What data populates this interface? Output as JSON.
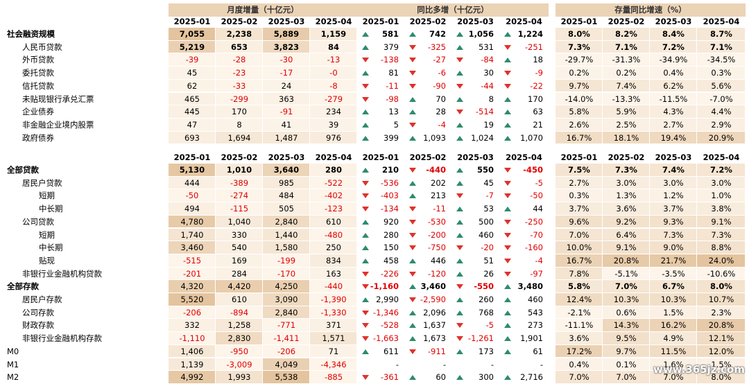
{
  "sections": {
    "monthly": "月度增量（十亿元）",
    "yoy": "同比多增（十亿元）",
    "growth": "存量同比增速（%）"
  },
  "months": [
    "2025-01",
    "2025-02",
    "2025-03",
    "2025-04"
  ],
  "table1": [
    {
      "label": "社会融资规模",
      "indent": 0,
      "bold": true,
      "monthly": [
        "7,055",
        "2,238",
        "5,889",
        "1,159"
      ],
      "yoy": [
        [
          "up",
          "581"
        ],
        [
          "up",
          "742"
        ],
        [
          "up",
          "1,056"
        ],
        [
          "up",
          "1,224"
        ]
      ],
      "growth": [
        "8.0%",
        "8.2%",
        "8.4%",
        "8.7%"
      ]
    },
    {
      "label": "人民币贷款",
      "indent": 1,
      "bold": false,
      "bold_values": true,
      "monthly": [
        "5,219",
        "653",
        "3,823",
        "84"
      ],
      "yoy": [
        [
          "up",
          "379"
        ],
        [
          "down",
          "-325"
        ],
        [
          "up",
          "531"
        ],
        [
          "down",
          "-251"
        ]
      ],
      "growth": [
        "7.3%",
        "7.1%",
        "7.2%",
        "7.1%"
      ]
    },
    {
      "label": "外币贷款",
      "indent": 1,
      "monthly": [
        "-39",
        "-28",
        "-30",
        "-13"
      ],
      "yoy": [
        [
          "down",
          "-138"
        ],
        [
          "down",
          "-27"
        ],
        [
          "down",
          "-84"
        ],
        [
          "up",
          "18"
        ]
      ],
      "growth": [
        "-29.7%",
        "-31.3%",
        "-34.9%",
        "-34.5%"
      ]
    },
    {
      "label": "委托贷款",
      "indent": 1,
      "monthly": [
        "45",
        "-23",
        "-17",
        "-0"
      ],
      "yoy": [
        [
          "up",
          "81"
        ],
        [
          "down",
          "-6"
        ],
        [
          "up",
          "30"
        ],
        [
          "down",
          "-9"
        ]
      ],
      "growth": [
        "0.2%",
        "0.2%",
        "0.4%",
        "0.3%"
      ]
    },
    {
      "label": "信托贷款",
      "indent": 1,
      "monthly": [
        "62",
        "-33",
        "24",
        "-8"
      ],
      "yoy": [
        [
          "down",
          "-11"
        ],
        [
          "down",
          "-90"
        ],
        [
          "down",
          "-44"
        ],
        [
          "down",
          "-22"
        ]
      ],
      "growth": [
        "9.7%",
        "7.4%",
        "6.2%",
        "5.6%"
      ]
    },
    {
      "label": "未贴现银行承兑汇票",
      "indent": 1,
      "monthly": [
        "465",
        "-299",
        "363",
        "-279"
      ],
      "yoy": [
        [
          "down",
          "-98"
        ],
        [
          "up",
          "70"
        ],
        [
          "up",
          "8"
        ],
        [
          "up",
          "170"
        ]
      ],
      "growth": [
        "-14.0%",
        "-13.3%",
        "-11.5%",
        "-7.0%"
      ]
    },
    {
      "label": "企业债券",
      "indent": 1,
      "monthly": [
        "445",
        "170",
        "-91",
        "234"
      ],
      "yoy": [
        [
          "up",
          "13"
        ],
        [
          "up",
          "28"
        ],
        [
          "down",
          "-514"
        ],
        [
          "up",
          "63"
        ]
      ],
      "growth": [
        "5.8%",
        "5.9%",
        "4.3%",
        "4.4%"
      ]
    },
    {
      "label": "非金融企业境内股票",
      "indent": 1,
      "monthly": [
        "47",
        "8",
        "41",
        "39"
      ],
      "yoy": [
        [
          "up",
          "5"
        ],
        [
          "down",
          "-4"
        ],
        [
          "up",
          "19"
        ],
        [
          "up",
          "21"
        ]
      ],
      "growth": [
        "2.6%",
        "2.5%",
        "2.7%",
        "2.9%"
      ]
    },
    {
      "label": "政府债券",
      "indent": 1,
      "monthly": [
        "693",
        "1,694",
        "1,487",
        "976"
      ],
      "yoy": [
        [
          "up",
          "399"
        ],
        [
          "up",
          "1,093"
        ],
        [
          "up",
          "1,024"
        ],
        [
          "up",
          "1,070"
        ]
      ],
      "growth": [
        "16.7%",
        "18.1%",
        "19.4%",
        "20.9%"
      ]
    }
  ],
  "table2": [
    {
      "label": "全部贷款",
      "indent": 0,
      "bold": true,
      "monthly": [
        "5,130",
        "1,010",
        "3,640",
        "280"
      ],
      "yoy": [
        [
          "up",
          "210"
        ],
        [
          "down",
          "-440"
        ],
        [
          "up",
          "550"
        ],
        [
          "down",
          "-450"
        ]
      ],
      "growth": [
        "7.5%",
        "7.3%",
        "7.4%",
        "7.2%"
      ]
    },
    {
      "label": "居民户贷款",
      "indent": 1,
      "monthly": [
        "444",
        "-389",
        "985",
        "-522"
      ],
      "yoy": [
        [
          "down",
          "-536"
        ],
        [
          "up",
          "202"
        ],
        [
          "up",
          "45"
        ],
        [
          "down",
          "-5"
        ]
      ],
      "growth": [
        "2.7%",
        "3.0%",
        "3.0%",
        "3.0%"
      ]
    },
    {
      "label": "短期",
      "indent": 2,
      "monthly": [
        "-50",
        "-274",
        "484",
        "-402"
      ],
      "yoy": [
        [
          "down",
          "-403"
        ],
        [
          "up",
          "213"
        ],
        [
          "down",
          "-7"
        ],
        [
          "down",
          "-50"
        ]
      ],
      "growth": [
        "0.3%",
        "1.3%",
        "1.2%",
        "1.0%"
      ]
    },
    {
      "label": "中长期",
      "indent": 2,
      "monthly": [
        "494",
        "-115",
        "505",
        "-123"
      ],
      "yoy": [
        [
          "down",
          "-134"
        ],
        [
          "down",
          "-11"
        ],
        [
          "up",
          "53"
        ],
        [
          "up",
          "44"
        ]
      ],
      "growth": [
        "3.7%",
        "3.6%",
        "3.7%",
        "3.8%"
      ]
    },
    {
      "label": "公司贷款",
      "indent": 1,
      "monthly": [
        "4,780",
        "1,040",
        "2,840",
        "610"
      ],
      "yoy": [
        [
          "up",
          "920"
        ],
        [
          "down",
          "-530"
        ],
        [
          "up",
          "500"
        ],
        [
          "down",
          "-250"
        ]
      ],
      "growth": [
        "9.6%",
        "9.2%",
        "9.3%",
        "9.1%"
      ]
    },
    {
      "label": "短期",
      "indent": 2,
      "monthly": [
        "1,740",
        "330",
        "1,440",
        "-480"
      ],
      "yoy": [
        [
          "up",
          "280"
        ],
        [
          "down",
          "-200"
        ],
        [
          "up",
          "460"
        ],
        [
          "down",
          "-70"
        ]
      ],
      "growth": [
        "7.0%",
        "6.4%",
        "7.3%",
        "7.3%"
      ]
    },
    {
      "label": "中长期",
      "indent": 2,
      "monthly": [
        "3,460",
        "540",
        "1,580",
        "250"
      ],
      "yoy": [
        [
          "up",
          "150"
        ],
        [
          "down",
          "-750"
        ],
        [
          "down",
          "-20"
        ],
        [
          "down",
          "-160"
        ]
      ],
      "growth": [
        "10.0%",
        "9.1%",
        "9.0%",
        "8.8%"
      ]
    },
    {
      "label": "贴现",
      "indent": 2,
      "monthly": [
        "-515",
        "169",
        "-199",
        "834"
      ],
      "yoy": [
        [
          "up",
          "458"
        ],
        [
          "up",
          "446"
        ],
        [
          "up",
          "51"
        ],
        [
          "down",
          "-4"
        ]
      ],
      "growth": [
        "16.7%",
        "20.8%",
        "21.7%",
        "24.0%"
      ]
    },
    {
      "label": "非银行业金融机构贷款",
      "indent": 1,
      "monthly": [
        "-201",
        "284",
        "-170",
        "163"
      ],
      "yoy": [
        [
          "down",
          "-226"
        ],
        [
          "down",
          "-120"
        ],
        [
          "up",
          "26"
        ],
        [
          "down",
          "-97"
        ]
      ],
      "growth": [
        "7.8%",
        "-5.1%",
        "-3.5%",
        "-10.6%"
      ]
    },
    {
      "label": "全部存款",
      "indent": 0,
      "bold": true,
      "bold_values": false,
      "bold_growth": true,
      "monthly": [
        "4,320",
        "4,420",
        "4,250",
        "-440"
      ],
      "yoy": [
        [
          "down",
          "-1,160"
        ],
        [
          "up",
          "3,460"
        ],
        [
          "down",
          "-550"
        ],
        [
          "up",
          "3,480"
        ]
      ],
      "growth": [
        "5.8%",
        "7.0%",
        "6.7%",
        "8.0%"
      ]
    },
    {
      "label": "居民户存款",
      "indent": 1,
      "monthly": [
        "5,520",
        "610",
        "3,090",
        "-1,390"
      ],
      "yoy": [
        [
          "up",
          "2,990"
        ],
        [
          "down",
          "-2,590"
        ],
        [
          "up",
          "260"
        ],
        [
          "up",
          "460"
        ]
      ],
      "growth": [
        "12.4%",
        "10.3%",
        "10.3%",
        "10.7%"
      ]
    },
    {
      "label": "公司存款",
      "indent": 1,
      "monthly": [
        "-206",
        "-894",
        "2,840",
        "-1,330"
      ],
      "yoy": [
        [
          "down",
          "-1,346"
        ],
        [
          "up",
          "2,096"
        ],
        [
          "up",
          "768"
        ],
        [
          "up",
          "543"
        ]
      ],
      "growth": [
        "-2.1%",
        "0.6%",
        "1.5%",
        "2.3%"
      ]
    },
    {
      "label": "财政存款",
      "indent": 1,
      "monthly": [
        "332",
        "1,258",
        "-771",
        "371"
      ],
      "yoy": [
        [
          "down",
          "-528"
        ],
        [
          "up",
          "1,637"
        ],
        [
          "down",
          "-5"
        ],
        [
          "up",
          "273"
        ]
      ],
      "growth": [
        "-11.1%",
        "14.3%",
        "16.2%",
        "20.8%"
      ]
    },
    {
      "label": "非银行业金融机构存款",
      "indent": 1,
      "monthly": [
        "-1,110",
        "2,830",
        "-1,411",
        "1,571"
      ],
      "yoy": [
        [
          "down",
          "-1,663"
        ],
        [
          "up",
          "1,673"
        ],
        [
          "down",
          "-1,261"
        ],
        [
          "up",
          "1,901"
        ]
      ],
      "growth": [
        "3.6%",
        "9.5%",
        "4.9%",
        "12.1%"
      ]
    },
    {
      "label": "M0",
      "indent": 0,
      "monthly": [
        "1,406",
        "-950",
        "-206",
        "71"
      ],
      "yoy": [
        [
          "up",
          "611"
        ],
        [
          "down",
          "-911"
        ],
        [
          "up",
          "173"
        ],
        [
          "up",
          "61"
        ]
      ],
      "growth": [
        "17.2%",
        "9.7%",
        "11.5%",
        "12.0%"
      ]
    },
    {
      "label": "M1",
      "indent": 0,
      "monthly": [
        "1,139",
        "-3,009",
        "4,049",
        "-4,346"
      ],
      "yoy": [
        [
          "none",
          "-"
        ],
        [
          "none",
          "-"
        ],
        [
          "none",
          "-"
        ],
        [
          "none",
          "-"
        ]
      ],
      "growth": [
        "0.4%",
        "0.1%",
        "1.6%",
        "1.5%"
      ]
    },
    {
      "label": "M2",
      "indent": 0,
      "monthly": [
        "4,992",
        "1,993",
        "5,538",
        "-885"
      ],
      "yoy": [
        [
          "down",
          "-361"
        ],
        [
          "up",
          "60"
        ],
        [
          "up",
          "300"
        ],
        [
          "up",
          "2,716"
        ]
      ],
      "growth": [
        "7.0%",
        "7.0%",
        "7.0%",
        "8.0%"
      ]
    }
  ],
  "watermark": "www.365jz.com",
  "colors": {
    "header": "#ebd3b6",
    "neg": "#e00000",
    "up": "#2e8b6e",
    "down": "#e0312b"
  }
}
